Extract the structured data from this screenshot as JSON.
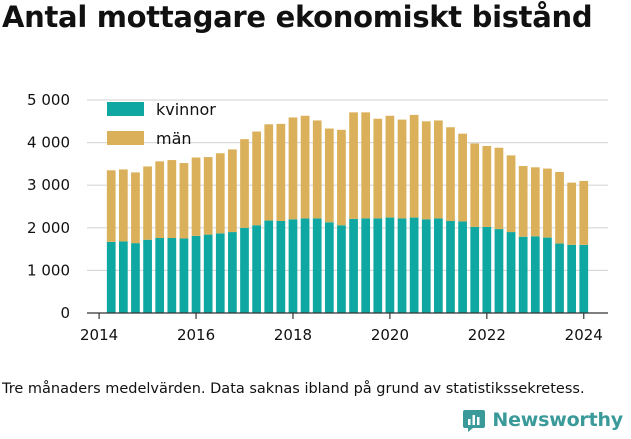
{
  "title": "Antal mottagare ekonomiskt bistånd",
  "caption": "Tre månaders medelvärden. Data saknas ibland på grund av statistikssekretess.",
  "brand": {
    "name": "Newsworthy",
    "icon": "bar-chart-logo-icon",
    "color": "#3a9a9a"
  },
  "colors": {
    "kvinnor": "#0fa7a1",
    "man": "#dbb05a",
    "grid": "#d9d9d9",
    "axis": "#333333"
  },
  "chart_data": {
    "type": "bar",
    "stacked": true,
    "title": "Antal mottagare ekonomiskt bistånd",
    "xlabel": "",
    "ylabel": "",
    "ylim": [
      0,
      5000
    ],
    "xlim": [
      2013.75,
      2024.5
    ],
    "y_ticks": [
      0,
      1000,
      2000,
      3000,
      4000,
      5000
    ],
    "y_tick_labels": [
      "0",
      "1 000",
      "2 000",
      "3 000",
      "4 000",
      "5 000"
    ],
    "x_ticks": [
      2014,
      2016,
      2018,
      2020,
      2022,
      2024
    ],
    "x_tick_labels": [
      "2014",
      "2016",
      "2018",
      "2020",
      "2022",
      "2024"
    ],
    "legend_position": "top-left",
    "grid": true,
    "x": [
      2014.25,
      2014.5,
      2014.75,
      2015.0,
      2015.25,
      2015.5,
      2015.75,
      2016.0,
      2016.25,
      2016.5,
      2016.75,
      2017.0,
      2017.25,
      2017.5,
      2017.75,
      2018.0,
      2018.25,
      2018.5,
      2018.75,
      2019.0,
      2019.25,
      2019.5,
      2019.75,
      2020.0,
      2020.25,
      2020.5,
      2020.75,
      2021.0,
      2021.25,
      2021.5,
      2021.75,
      2022.0,
      2022.25,
      2022.5,
      2022.75,
      2023.0,
      2023.25,
      2023.5,
      2023.75,
      2024.0
    ],
    "series": [
      {
        "name": "kvinnor",
        "values": [
          1670,
          1680,
          1640,
          1720,
          1760,
          1760,
          1750,
          1810,
          1840,
          1870,
          1900,
          2000,
          2060,
          2170,
          2160,
          2200,
          2220,
          2220,
          2130,
          2060,
          2210,
          2220,
          2220,
          2240,
          2220,
          2240,
          2200,
          2220,
          2160,
          2150,
          2020,
          2020,
          1970,
          1900,
          1790,
          1800,
          1770,
          1630,
          1600,
          1600
        ]
      },
      {
        "name": "män",
        "values": [
          1680,
          1690,
          1660,
          1720,
          1800,
          1830,
          1770,
          1840,
          1820,
          1880,
          1940,
          2080,
          2200,
          2260,
          2280,
          2390,
          2410,
          2300,
          2200,
          2240,
          2500,
          2490,
          2340,
          2390,
          2320,
          2410,
          2300,
          2300,
          2200,
          2060,
          1960,
          1900,
          1910,
          1800,
          1660,
          1620,
          1620,
          1680,
          1460,
          1500
        ]
      }
    ]
  }
}
